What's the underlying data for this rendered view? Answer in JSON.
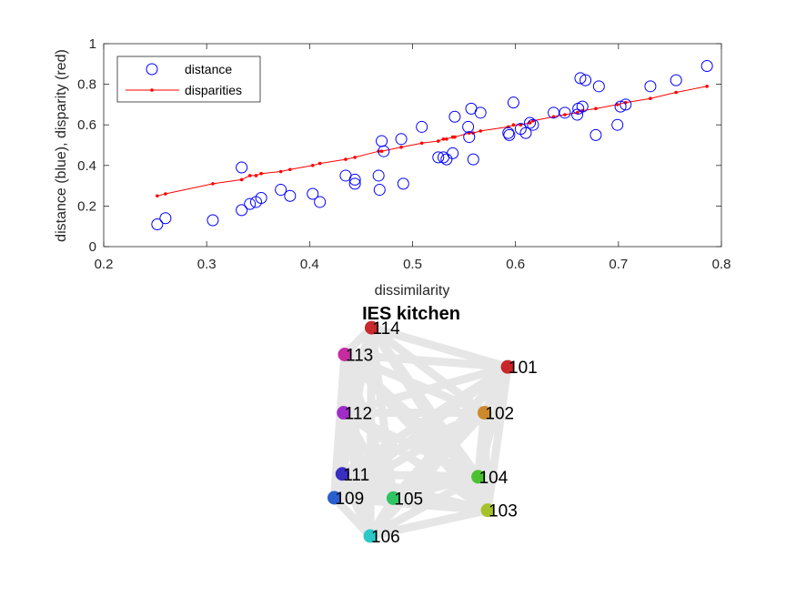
{
  "chart_data": [
    {
      "type": "scatter",
      "xlabel": "dissimilarity",
      "ylabel": "distance (blue), disparity (red)",
      "xlim": [
        0.2,
        0.8
      ],
      "ylim": [
        0,
        1
      ],
      "xticks": [
        "0.2",
        "0.3",
        "0.4",
        "0.5",
        "0.6",
        "0.7",
        "0.8"
      ],
      "yticks": [
        "0",
        "0.2",
        "0.4",
        "0.6",
        "0.8",
        "1"
      ],
      "legend": {
        "placement": "top-left",
        "entries": [
          "distance",
          "disparities"
        ]
      },
      "colors": {
        "distance": "#0000ff",
        "disparities": "#ff0000"
      },
      "series": [
        {
          "name": "distance",
          "marker": "open-circle",
          "points": [
            [
              0.252,
              0.11
            ],
            [
              0.26,
              0.14
            ],
            [
              0.306,
              0.13
            ],
            [
              0.334,
              0.18
            ],
            [
              0.334,
              0.39
            ],
            [
              0.342,
              0.21
            ],
            [
              0.348,
              0.22
            ],
            [
              0.353,
              0.24
            ],
            [
              0.372,
              0.28
            ],
            [
              0.381,
              0.25
            ],
            [
              0.403,
              0.26
            ],
            [
              0.41,
              0.22
            ],
            [
              0.435,
              0.35
            ],
            [
              0.444,
              0.33
            ],
            [
              0.444,
              0.31
            ],
            [
              0.467,
              0.35
            ],
            [
              0.468,
              0.28
            ],
            [
              0.47,
              0.52
            ],
            [
              0.472,
              0.47
            ],
            [
              0.489,
              0.53
            ],
            [
              0.491,
              0.31
            ],
            [
              0.509,
              0.59
            ],
            [
              0.525,
              0.44
            ],
            [
              0.53,
              0.44
            ],
            [
              0.533,
              0.43
            ],
            [
              0.539,
              0.46
            ],
            [
              0.541,
              0.64
            ],
            [
              0.554,
              0.59
            ],
            [
              0.555,
              0.54
            ],
            [
              0.557,
              0.68
            ],
            [
              0.559,
              0.43
            ],
            [
              0.566,
              0.66
            ],
            [
              0.593,
              0.56
            ],
            [
              0.594,
              0.55
            ],
            [
              0.598,
              0.71
            ],
            [
              0.605,
              0.58
            ],
            [
              0.61,
              0.56
            ],
            [
              0.614,
              0.61
            ],
            [
              0.617,
              0.6
            ],
            [
              0.637,
              0.66
            ],
            [
              0.648,
              0.66
            ],
            [
              0.66,
              0.65
            ],
            [
              0.661,
              0.68
            ],
            [
              0.663,
              0.83
            ],
            [
              0.665,
              0.69
            ],
            [
              0.668,
              0.82
            ],
            [
              0.678,
              0.55
            ],
            [
              0.681,
              0.79
            ],
            [
              0.699,
              0.6
            ],
            [
              0.702,
              0.69
            ],
            [
              0.707,
              0.7
            ],
            [
              0.731,
              0.79
            ],
            [
              0.756,
              0.82
            ],
            [
              0.786,
              0.89
            ]
          ]
        },
        {
          "name": "disparities",
          "marker": "dot-line",
          "x": [
            0.252,
            0.26,
            0.306,
            0.334,
            0.342,
            0.348,
            0.353,
            0.372,
            0.381,
            0.403,
            0.41,
            0.435,
            0.444,
            0.467,
            0.47,
            0.489,
            0.509,
            0.525,
            0.53,
            0.533,
            0.539,
            0.541,
            0.555,
            0.559,
            0.566,
            0.593,
            0.598,
            0.605,
            0.614,
            0.617,
            0.637,
            0.648,
            0.66,
            0.665,
            0.678,
            0.699,
            0.707,
            0.731,
            0.756,
            0.786
          ],
          "y": [
            0.25,
            0.26,
            0.31,
            0.33,
            0.35,
            0.35,
            0.36,
            0.37,
            0.38,
            0.4,
            0.41,
            0.43,
            0.44,
            0.47,
            0.47,
            0.49,
            0.51,
            0.52,
            0.53,
            0.53,
            0.54,
            0.54,
            0.56,
            0.56,
            0.57,
            0.59,
            0.6,
            0.6,
            0.61,
            0.62,
            0.64,
            0.65,
            0.66,
            0.67,
            0.68,
            0.7,
            0.71,
            0.73,
            0.76,
            0.79
          ]
        }
      ]
    },
    {
      "type": "network",
      "title": "IES kitchen",
      "edge_color": "#e6e6e6",
      "nodes": [
        {
          "id": "101",
          "x": 0.91,
          "y": 0.785,
          "color": "#c8262a"
        },
        {
          "id": "102",
          "x": 0.805,
          "y": 0.545,
          "color": "#cc8a2c"
        },
        {
          "id": "103",
          "x": 0.82,
          "y": 0.035,
          "color": "#a6c22b"
        },
        {
          "id": "104",
          "x": 0.777,
          "y": 0.21,
          "color": "#4bc132"
        },
        {
          "id": "105",
          "x": 0.395,
          "y": 0.098,
          "color": "#2ec463"
        },
        {
          "id": "106",
          "x": 0.291,
          "y": -0.1,
          "color": "#2cc7c7"
        },
        {
          "id": "109",
          "x": 0.129,
          "y": 0.1,
          "color": "#2a5fd0"
        },
        {
          "id": "111",
          "x": 0.165,
          "y": 0.225,
          "color": "#3a2ec2"
        },
        {
          "id": "112",
          "x": 0.171,
          "y": 0.545,
          "color": "#a02cc8"
        },
        {
          "id": "113",
          "x": 0.176,
          "y": 0.85,
          "color": "#c42ca0"
        },
        {
          "id": "114",
          "x": 0.297,
          "y": 0.99,
          "color": "#c8282e"
        }
      ]
    }
  ]
}
